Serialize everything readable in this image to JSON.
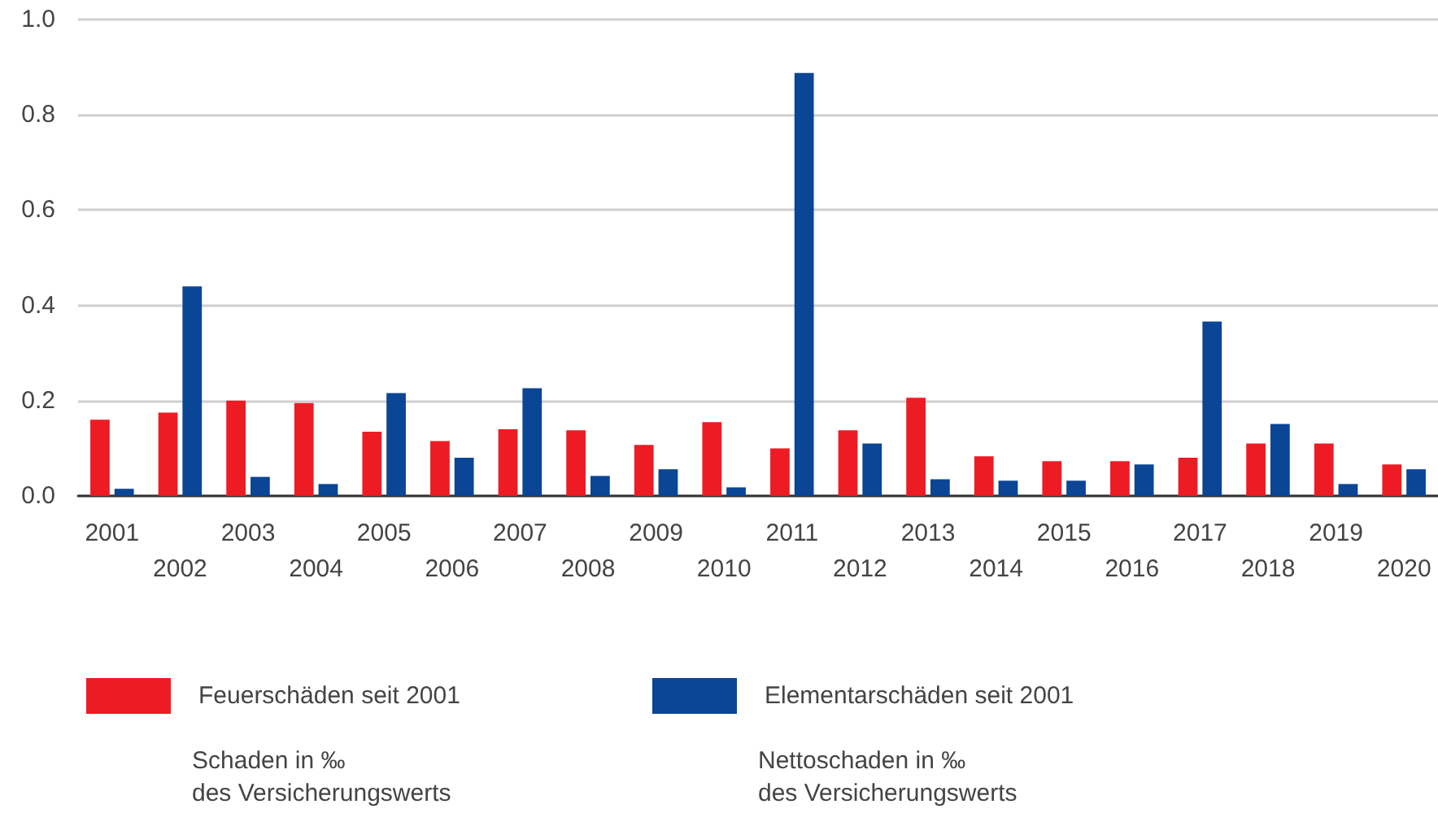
{
  "chart_data": {
    "type": "bar",
    "categories": [
      "2001",
      "2002",
      "2003",
      "2004",
      "2005",
      "2006",
      "2007",
      "2008",
      "2009",
      "2010",
      "2011",
      "2012",
      "2013",
      "2014",
      "2015",
      "2016",
      "2017",
      "2018",
      "2019",
      "2020"
    ],
    "series": [
      {
        "name": "Feuerschäden seit 2001",
        "color": "#ed1c24",
        "values": [
          0.16,
          0.175,
          0.2,
          0.195,
          0.135,
          0.115,
          0.14,
          0.138,
          0.107,
          0.155,
          0.1,
          0.138,
          0.206,
          0.083,
          0.073,
          0.073,
          0.08,
          0.11,
          0.11,
          0.066
        ]
      },
      {
        "name": "Elementarschäden seit 2001",
        "color": "#0b4595",
        "values": [
          0.015,
          0.44,
          0.04,
          0.025,
          0.216,
          0.08,
          0.226,
          0.042,
          0.056,
          0.018,
          0.888,
          0.11,
          0.035,
          0.032,
          0.032,
          0.066,
          0.366,
          0.151,
          0.025,
          0.056
        ]
      }
    ],
    "ylim": [
      0,
      1.0
    ],
    "yticks": [
      {
        "value": 0,
        "label": "0.0"
      },
      {
        "value": 0.2,
        "label": "0.2"
      },
      {
        "value": 0.4,
        "label": "0.4"
      },
      {
        "value": 0.6,
        "label": "0.6"
      },
      {
        "value": 0.8,
        "label": "0.8"
      },
      {
        "value": 1.0,
        "label": "1.0"
      }
    ],
    "grid": "y",
    "legend": "bottom left",
    "annotations": [
      "Schaden in ‰\ndes Versicherungswerts",
      "Nettoschaden in ‰\ndes Versicherungswerts"
    ]
  }
}
